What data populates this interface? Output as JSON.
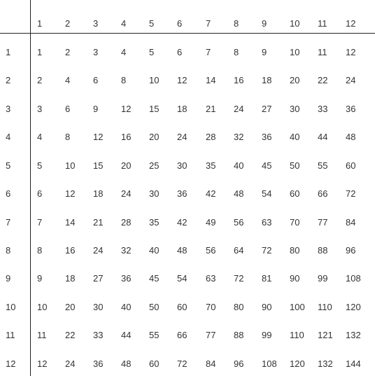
{
  "table": {
    "column_headers": [
      "1",
      "2",
      "3",
      "4",
      "5",
      "6",
      "7",
      "8",
      "9",
      "10",
      "11",
      "12"
    ],
    "row_headers": [
      "1",
      "2",
      "3",
      "4",
      "5",
      "6",
      "7",
      "8",
      "9",
      "10",
      "11",
      "12"
    ],
    "rows": [
      [
        "1",
        "2",
        "3",
        "4",
        "5",
        "6",
        "7",
        "8",
        "9",
        "10",
        "11",
        "12"
      ],
      [
        "2",
        "4",
        "6",
        "8",
        "10",
        "12",
        "14",
        "16",
        "18",
        "20",
        "22",
        "24"
      ],
      [
        "3",
        "6",
        "9",
        "12",
        "15",
        "18",
        "21",
        "24",
        "27",
        "30",
        "33",
        "36"
      ],
      [
        "4",
        "8",
        "12",
        "16",
        "20",
        "24",
        "28",
        "32",
        "36",
        "40",
        "44",
        "48"
      ],
      [
        "5",
        "10",
        "15",
        "20",
        "25",
        "30",
        "35",
        "40",
        "45",
        "50",
        "55",
        "60"
      ],
      [
        "6",
        "12",
        "18",
        "24",
        "30",
        "36",
        "42",
        "48",
        "54",
        "60",
        "66",
        "72"
      ],
      [
        "7",
        "14",
        "21",
        "28",
        "35",
        "42",
        "49",
        "56",
        "63",
        "70",
        "77",
        "84"
      ],
      [
        "8",
        "16",
        "24",
        "32",
        "40",
        "48",
        "56",
        "64",
        "72",
        "80",
        "88",
        "96"
      ],
      [
        "9",
        "18",
        "27",
        "36",
        "45",
        "54",
        "63",
        "72",
        "81",
        "90",
        "99",
        "108"
      ],
      [
        "10",
        "20",
        "30",
        "40",
        "50",
        "60",
        "70",
        "80",
        "90",
        "100",
        "110",
        "120"
      ],
      [
        "11",
        "22",
        "33",
        "44",
        "55",
        "66",
        "77",
        "88",
        "99",
        "110",
        "121",
        "132"
      ],
      [
        "12",
        "24",
        "36",
        "48",
        "60",
        "72",
        "84",
        "96",
        "108",
        "120",
        "132",
        "144"
      ]
    ]
  },
  "colors": {
    "text": "#333333",
    "rule": "#222222",
    "background": "#ffffff"
  }
}
